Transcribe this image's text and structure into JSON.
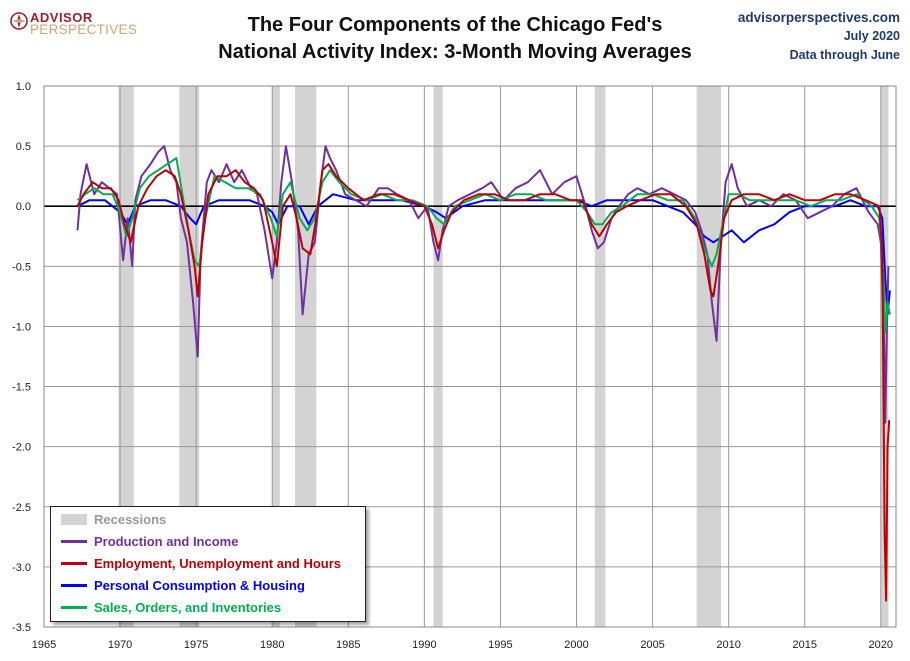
{
  "header": {
    "title_line1": "The Four Components of the Chicago Fed's",
    "title_line2": "National Activity Index: 3-Month Moving Averages",
    "logo_top": "ADVISOR",
    "logo_bottom": "PERSPECTIVES",
    "source_site": "advisorperspectives.com",
    "source_date": "July 2020",
    "source_note": "Data through June"
  },
  "chart_data": {
    "type": "line",
    "xlim": [
      1965,
      2021
    ],
    "ylim": [
      -3.5,
      1.0
    ],
    "x_ticks": [
      1965,
      1970,
      1975,
      1980,
      1985,
      1990,
      1995,
      2000,
      2005,
      2010,
      2015,
      2020
    ],
    "y_ticks": [
      1.0,
      0.5,
      0.0,
      -0.5,
      -1.0,
      -1.5,
      -2.0,
      -2.5,
      -3.0,
      -3.5
    ],
    "y_tick_labels": [
      "1.0",
      "0.5",
      "0.0",
      "-0.5",
      "-1.0",
      "-1.5",
      "-2.0",
      "-2.5",
      "-3.0",
      "-3.5"
    ],
    "grid": true,
    "legend_position": "bottom-left",
    "recessions": [
      {
        "start": 1969.9,
        "end": 1970.9
      },
      {
        "start": 1973.9,
        "end": 1975.2
      },
      {
        "start": 1980.0,
        "end": 1980.5
      },
      {
        "start": 1981.5,
        "end": 1982.9
      },
      {
        "start": 1990.6,
        "end": 1991.2
      },
      {
        "start": 2001.2,
        "end": 2001.9
      },
      {
        "start": 2007.9,
        "end": 2009.5
      },
      {
        "start": 2020.0,
        "end": 2020.5
      }
    ],
    "recession_label": "Recessions",
    "recession_color": "#d3d3d3",
    "series": [
      {
        "name": "Production and Income",
        "color": "#7030a0",
        "x": [
          1967.2,
          1967.4,
          1967.8,
          1968.3,
          1968.8,
          1969.3,
          1969.8,
          1970.2,
          1970.5,
          1970.8,
          1971.0,
          1971.4,
          1972.0,
          1972.5,
          1972.9,
          1973.3,
          1973.7,
          1974.0,
          1974.4,
          1974.8,
          1975.1,
          1975.3,
          1975.7,
          1976.0,
          1976.5,
          1977.0,
          1977.5,
          1978.0,
          1978.6,
          1979.0,
          1979.5,
          1980.0,
          1980.3,
          1980.6,
          1980.9,
          1981.3,
          1981.7,
          1982.0,
          1982.4,
          1982.8,
          1983.2,
          1983.5,
          1983.8,
          1984.2,
          1984.8,
          1985.5,
          1986.2,
          1987.0,
          1987.6,
          1988.2,
          1989.0,
          1989.6,
          1990.2,
          1990.6,
          1990.9,
          1991.2,
          1991.6,
          1992.2,
          1993.0,
          1993.8,
          1994.4,
          1995.2,
          1996.0,
          1996.8,
          1997.6,
          1998.4,
          1999.2,
          2000.0,
          2000.6,
          2001.0,
          2001.4,
          2001.8,
          2002.3,
          2002.8,
          2003.4,
          2004.0,
          2004.8,
          2005.6,
          2006.4,
          2007.2,
          2007.8,
          2008.2,
          2008.6,
          2008.9,
          2009.2,
          2009.5,
          2009.8,
          2010.2,
          2010.6,
          2011.2,
          2012.0,
          2012.8,
          2013.6,
          2014.4,
          2015.2,
          2016.0,
          2016.8,
          2017.6,
          2018.4,
          2019.2,
          2019.8,
          2020.0,
          2020.2,
          2020.3,
          2020.4,
          2020.5
        ],
        "y": [
          -0.2,
          0.1,
          0.35,
          0.1,
          0.2,
          0.15,
          0.1,
          -0.45,
          -0.1,
          -0.5,
          0.05,
          0.25,
          0.35,
          0.45,
          0.5,
          0.3,
          0.2,
          -0.1,
          -0.3,
          -0.8,
          -1.25,
          -0.4,
          0.2,
          0.3,
          0.2,
          0.35,
          0.2,
          0.3,
          0.15,
          0.1,
          -0.2,
          -0.6,
          -0.3,
          0.2,
          0.5,
          0.2,
          -0.2,
          -0.9,
          -0.4,
          -0.3,
          0.2,
          0.5,
          0.4,
          0.3,
          0.1,
          0.05,
          0.0,
          0.15,
          0.15,
          0.1,
          0.05,
          -0.1,
          0.0,
          -0.3,
          -0.45,
          -0.2,
          0.0,
          0.05,
          0.1,
          0.15,
          0.2,
          0.05,
          0.15,
          0.2,
          0.3,
          0.1,
          0.2,
          0.25,
          0.0,
          -0.2,
          -0.35,
          -0.3,
          -0.1,
          0.0,
          0.1,
          0.15,
          0.1,
          0.15,
          0.1,
          0.05,
          -0.05,
          -0.2,
          -0.4,
          -0.8,
          -1.12,
          -0.3,
          0.2,
          0.35,
          0.15,
          0.0,
          0.05,
          0.0,
          0.1,
          0.05,
          -0.1,
          -0.05,
          0.0,
          0.1,
          0.15,
          -0.05,
          -0.15,
          -0.3,
          -1.0,
          -1.8,
          -1.0,
          -0.5
        ]
      },
      {
        "name": "Employment, Unemployment and Hours",
        "color": "#c00000",
        "x": [
          1967.2,
          1967.6,
          1968.2,
          1968.8,
          1969.4,
          1969.9,
          1970.3,
          1970.7,
          1971.2,
          1971.8,
          1972.4,
          1973.0,
          1973.6,
          1974.0,
          1974.5,
          1974.9,
          1975.1,
          1975.4,
          1975.8,
          1976.4,
          1977.0,
          1977.6,
          1978.2,
          1978.8,
          1979.4,
          1980.0,
          1980.3,
          1980.7,
          1981.2,
          1981.6,
          1982.0,
          1982.5,
          1982.9,
          1983.3,
          1983.7,
          1984.2,
          1985.0,
          1986.0,
          1987.0,
          1988.0,
          1989.0,
          1990.0,
          1990.5,
          1990.9,
          1991.3,
          1991.8,
          1992.6,
          1993.6,
          1994.6,
          1995.6,
          1996.6,
          1997.6,
          1998.6,
          1999.6,
          2000.4,
          2001.0,
          2001.5,
          2002.0,
          2002.6,
          2003.3,
          2004.2,
          2005.2,
          2006.2,
          2007.2,
          2007.9,
          2008.4,
          2008.8,
          2009.0,
          2009.3,
          2009.7,
          2010.2,
          2011.0,
          2012.0,
          2013.0,
          2014.0,
          2015.0,
          2016.0,
          2017.0,
          2018.0,
          2019.0,
          2019.9,
          2020.1,
          2020.25,
          2020.35,
          2020.45,
          2020.55
        ],
        "y": [
          0.0,
          0.1,
          0.2,
          0.15,
          0.15,
          0.05,
          -0.15,
          -0.3,
          0.0,
          0.15,
          0.25,
          0.3,
          0.25,
          0.1,
          -0.2,
          -0.5,
          -0.75,
          -0.3,
          0.1,
          0.25,
          0.25,
          0.3,
          0.2,
          0.15,
          0.05,
          -0.3,
          -0.5,
          0.0,
          0.1,
          -0.1,
          -0.35,
          -0.4,
          -0.1,
          0.3,
          0.35,
          0.25,
          0.15,
          0.05,
          0.1,
          0.1,
          0.05,
          0.0,
          -0.15,
          -0.35,
          -0.2,
          -0.05,
          0.05,
          0.1,
          0.1,
          0.05,
          0.05,
          0.1,
          0.1,
          0.05,
          0.05,
          -0.15,
          -0.25,
          -0.15,
          -0.05,
          0.0,
          0.05,
          0.1,
          0.1,
          0.0,
          -0.15,
          -0.4,
          -0.7,
          -0.75,
          -0.5,
          -0.1,
          0.05,
          0.1,
          0.1,
          0.05,
          0.1,
          0.05,
          0.05,
          0.1,
          0.1,
          0.05,
          0.0,
          -0.4,
          -2.7,
          -3.28,
          -2.0,
          -1.78
        ]
      },
      {
        "name": "Personal Consumption & Housing",
        "color": "#0000ff",
        "x": [
          1967.2,
          1968.0,
          1969.0,
          1970.0,
          1970.5,
          1971.0,
          1972.0,
          1973.0,
          1974.0,
          1974.6,
          1975.0,
          1975.5,
          1976.5,
          1977.5,
          1978.5,
          1979.5,
          1980.0,
          1980.4,
          1981.0,
          1981.8,
          1982.4,
          1983.0,
          1984.0,
          1985.5,
          1987.0,
          1988.5,
          1990.0,
          1990.8,
          1991.4,
          1992.5,
          1994.0,
          1996.0,
          1998.0,
          2000.0,
          2001.0,
          2002.0,
          2003.5,
          2005.0,
          2006.0,
          2007.0,
          2007.8,
          2008.4,
          2009.0,
          2009.6,
          2010.2,
          2011.0,
          2012.0,
          2013.0,
          2014.0,
          2015.0,
          2016.0,
          2017.0,
          2018.0,
          2019.0,
          2019.8,
          2020.1,
          2020.3,
          2020.45,
          2020.6
        ],
        "y": [
          0.0,
          0.05,
          0.05,
          -0.05,
          -0.15,
          0.0,
          0.05,
          0.05,
          0.0,
          -0.1,
          -0.15,
          0.0,
          0.05,
          0.05,
          0.05,
          0.0,
          -0.05,
          -0.15,
          0.0,
          0.0,
          -0.15,
          0.0,
          0.1,
          0.05,
          0.05,
          0.05,
          0.0,
          -0.05,
          -0.1,
          0.0,
          0.05,
          0.05,
          0.05,
          0.05,
          0.0,
          0.05,
          0.05,
          0.05,
          0.0,
          -0.05,
          -0.15,
          -0.25,
          -0.3,
          -0.25,
          -0.2,
          -0.3,
          -0.2,
          -0.15,
          -0.05,
          0.0,
          0.0,
          0.0,
          0.05,
          0.0,
          0.0,
          -0.1,
          -0.6,
          -0.9,
          -0.7
        ]
      },
      {
        "name": "Sales, Orders, and Inventories",
        "color": "#00b050",
        "x": [
          1967.2,
          1967.7,
          1968.3,
          1968.9,
          1969.5,
          1970.0,
          1970.4,
          1970.8,
          1971.3,
          1971.9,
          1972.5,
          1973.1,
          1973.7,
          1974.1,
          1974.5,
          1974.9,
          1975.2,
          1975.6,
          1976.2,
          1976.9,
          1977.6,
          1978.4,
          1979.2,
          1979.9,
          1980.3,
          1980.7,
          1981.2,
          1981.8,
          1982.3,
          1982.8,
          1983.3,
          1983.8,
          1984.4,
          1985.2,
          1986.2,
          1987.2,
          1988.2,
          1989.2,
          1990.2,
          1990.8,
          1991.3,
          1992.0,
          1993.0,
          1994.0,
          1995.0,
          1996.0,
          1997.0,
          1998.0,
          1999.0,
          2000.0,
          2000.7,
          2001.2,
          2001.7,
          2002.3,
          2003.0,
          2004.0,
          2005.0,
          2006.0,
          2007.0,
          2007.8,
          2008.4,
          2008.9,
          2009.2,
          2009.6,
          2010.0,
          2010.6,
          2011.4,
          2012.4,
          2013.4,
          2014.4,
          2015.4,
          2016.4,
          2017.4,
          2018.4,
          2019.4,
          2019.9,
          2020.15,
          2020.3,
          2020.45,
          2020.6
        ],
        "y": [
          0.05,
          0.1,
          0.15,
          0.1,
          0.1,
          -0.05,
          -0.25,
          -0.1,
          0.15,
          0.25,
          0.3,
          0.35,
          0.4,
          0.1,
          -0.2,
          -0.45,
          -0.5,
          -0.1,
          0.25,
          0.2,
          0.15,
          0.15,
          0.1,
          -0.1,
          -0.25,
          0.1,
          0.2,
          -0.1,
          -0.2,
          -0.1,
          0.2,
          0.3,
          0.2,
          0.1,
          0.05,
          0.1,
          0.05,
          0.05,
          0.0,
          -0.1,
          -0.15,
          0.0,
          0.05,
          0.1,
          0.05,
          0.1,
          0.1,
          0.05,
          0.05,
          0.05,
          -0.05,
          -0.15,
          -0.15,
          -0.05,
          0.0,
          0.1,
          0.1,
          0.05,
          0.05,
          -0.1,
          -0.35,
          -0.5,
          -0.4,
          -0.15,
          0.1,
          0.1,
          0.05,
          0.05,
          0.05,
          0.05,
          0.0,
          0.05,
          0.05,
          0.1,
          0.0,
          -0.1,
          -0.5,
          -1.05,
          -0.8,
          -0.9
        ]
      }
    ]
  }
}
